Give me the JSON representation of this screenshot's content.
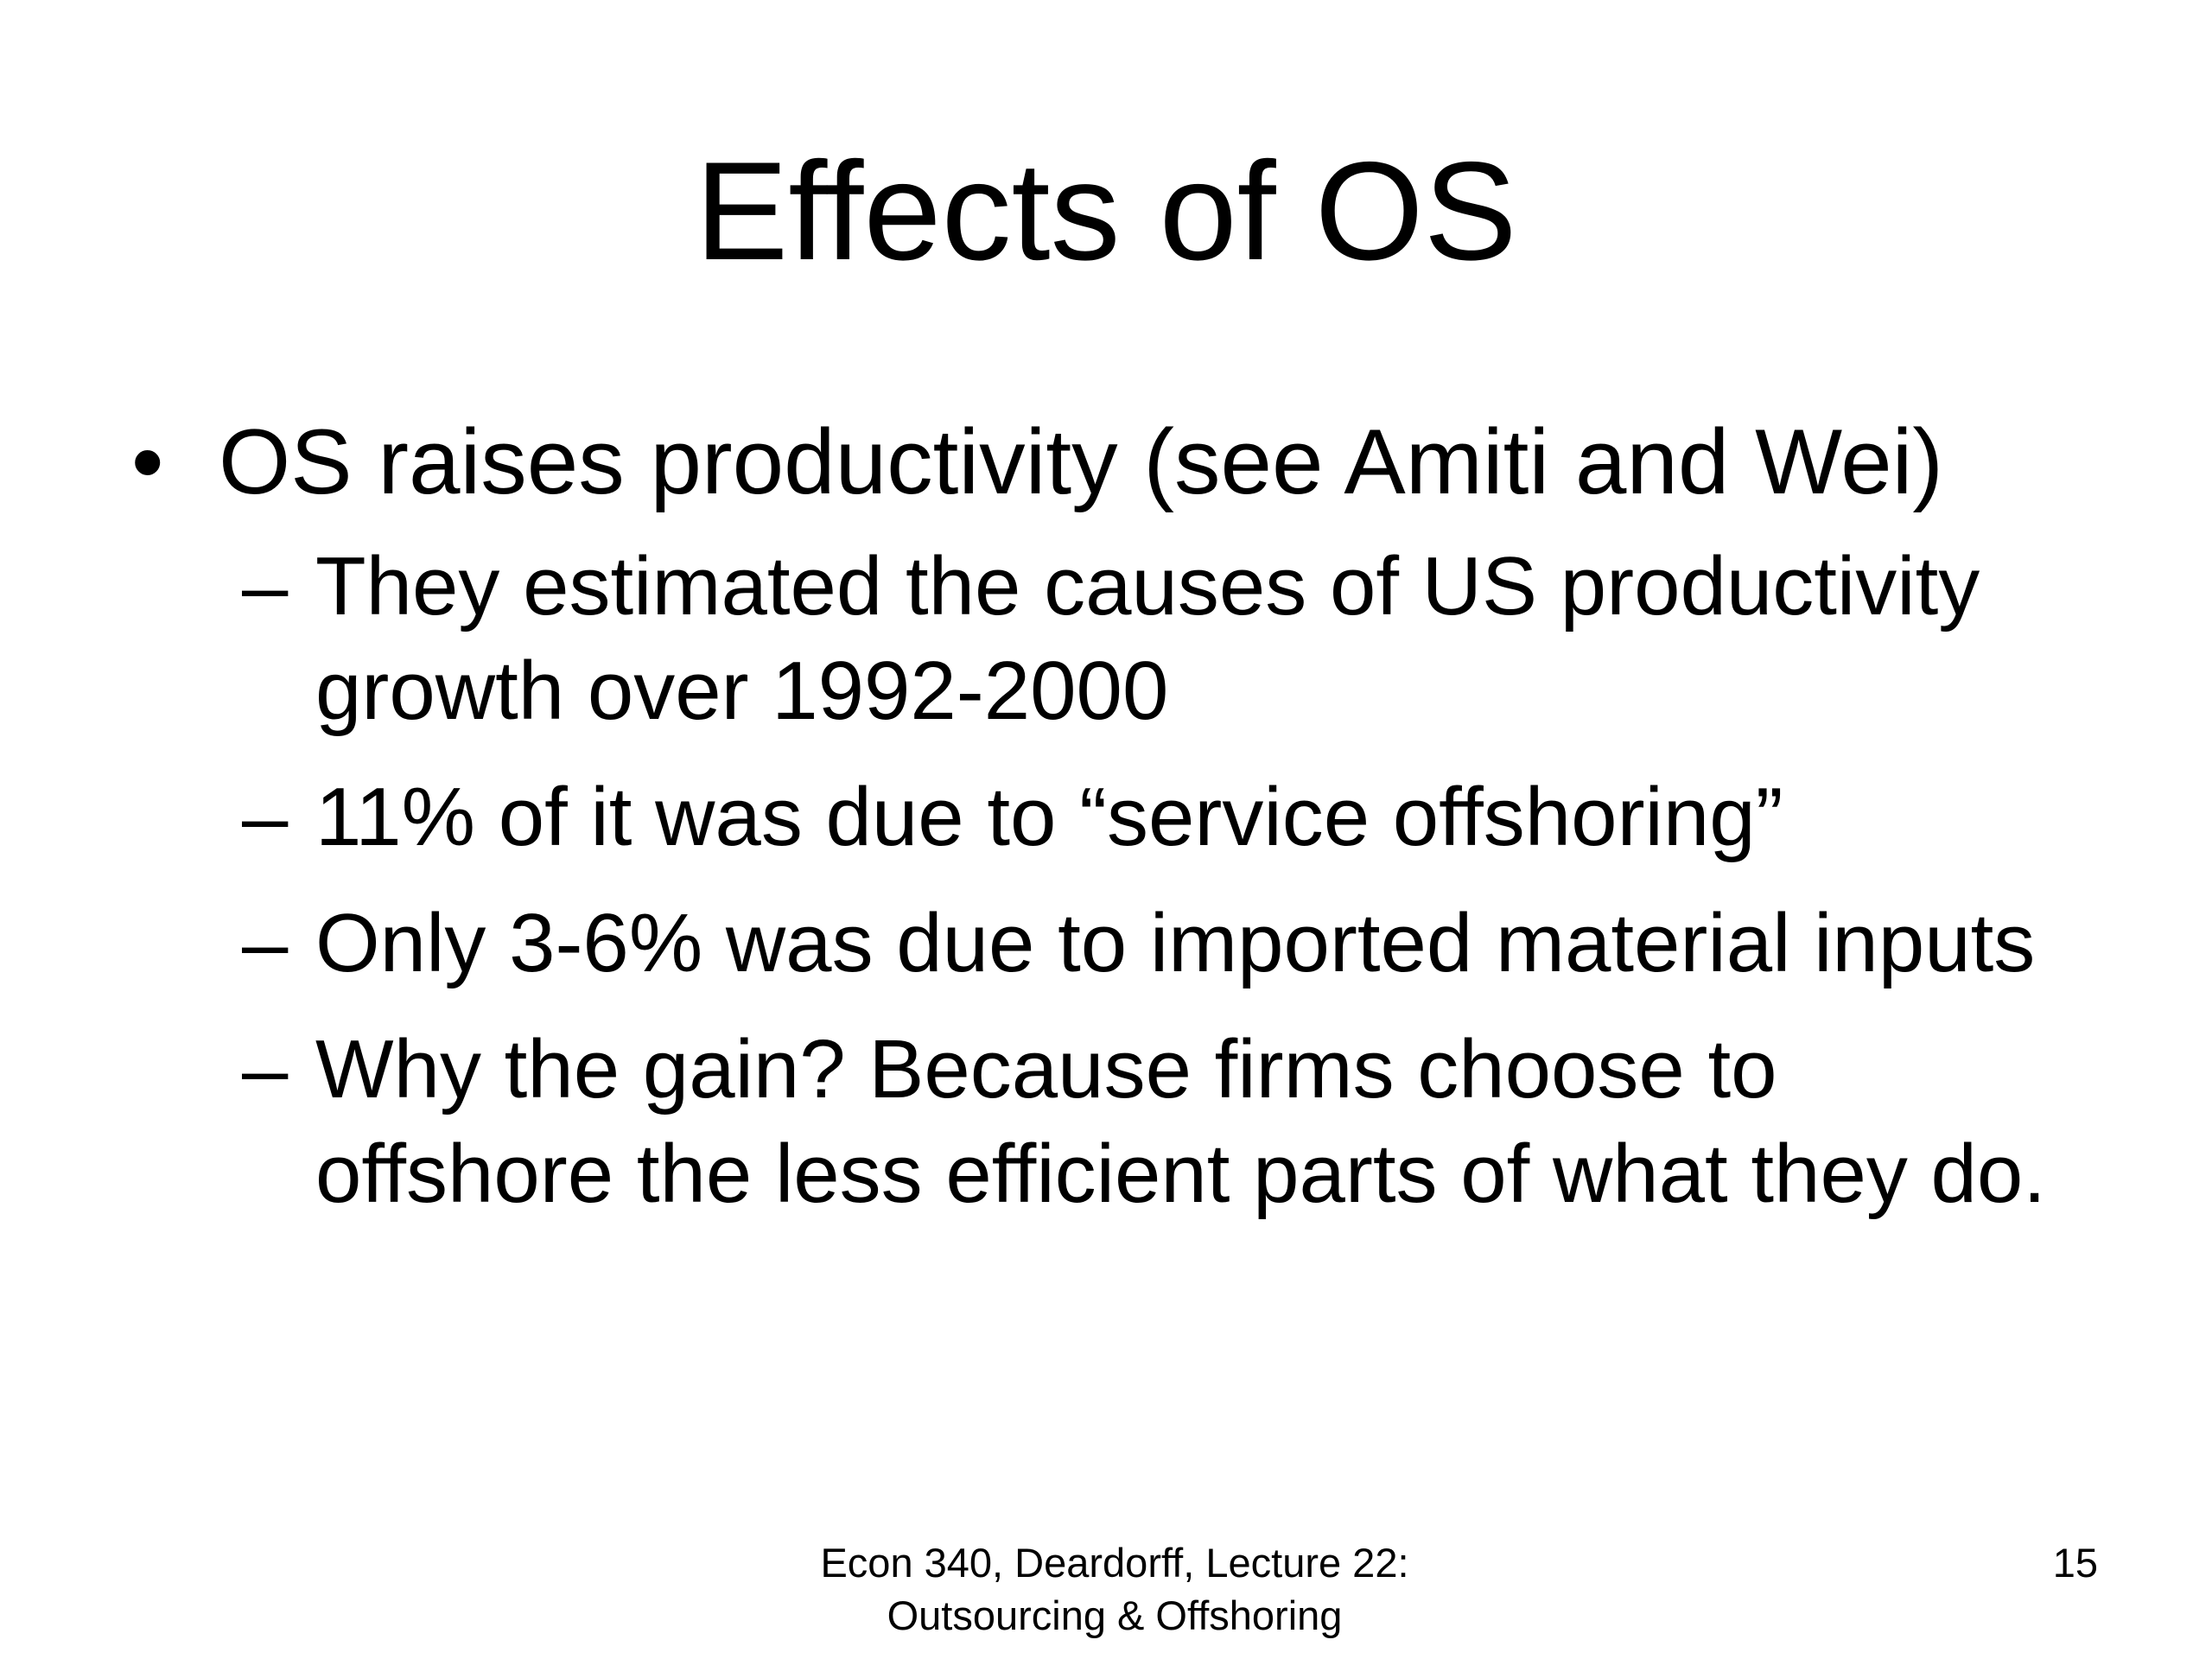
{
  "slide": {
    "title": "Effects of OS",
    "bullets": [
      {
        "marker": "•",
        "text": "OS raises productivity (see Amiti and Wei)",
        "sub_marker": "–",
        "sub_items": [
          "They estimated the causes of US productivity growth over 1992-2000",
          "11% of it was due to “service offshoring”",
          "Only 3-6% was due to imported material inputs",
          "Why the gain?  Because firms choose to offshore the less efficient parts of what they do."
        ]
      }
    ],
    "footer": {
      "text": "Econ 340, Deardorff, Lecture 22:\nOutsourcing & Offshoring",
      "page_number": "15"
    }
  }
}
